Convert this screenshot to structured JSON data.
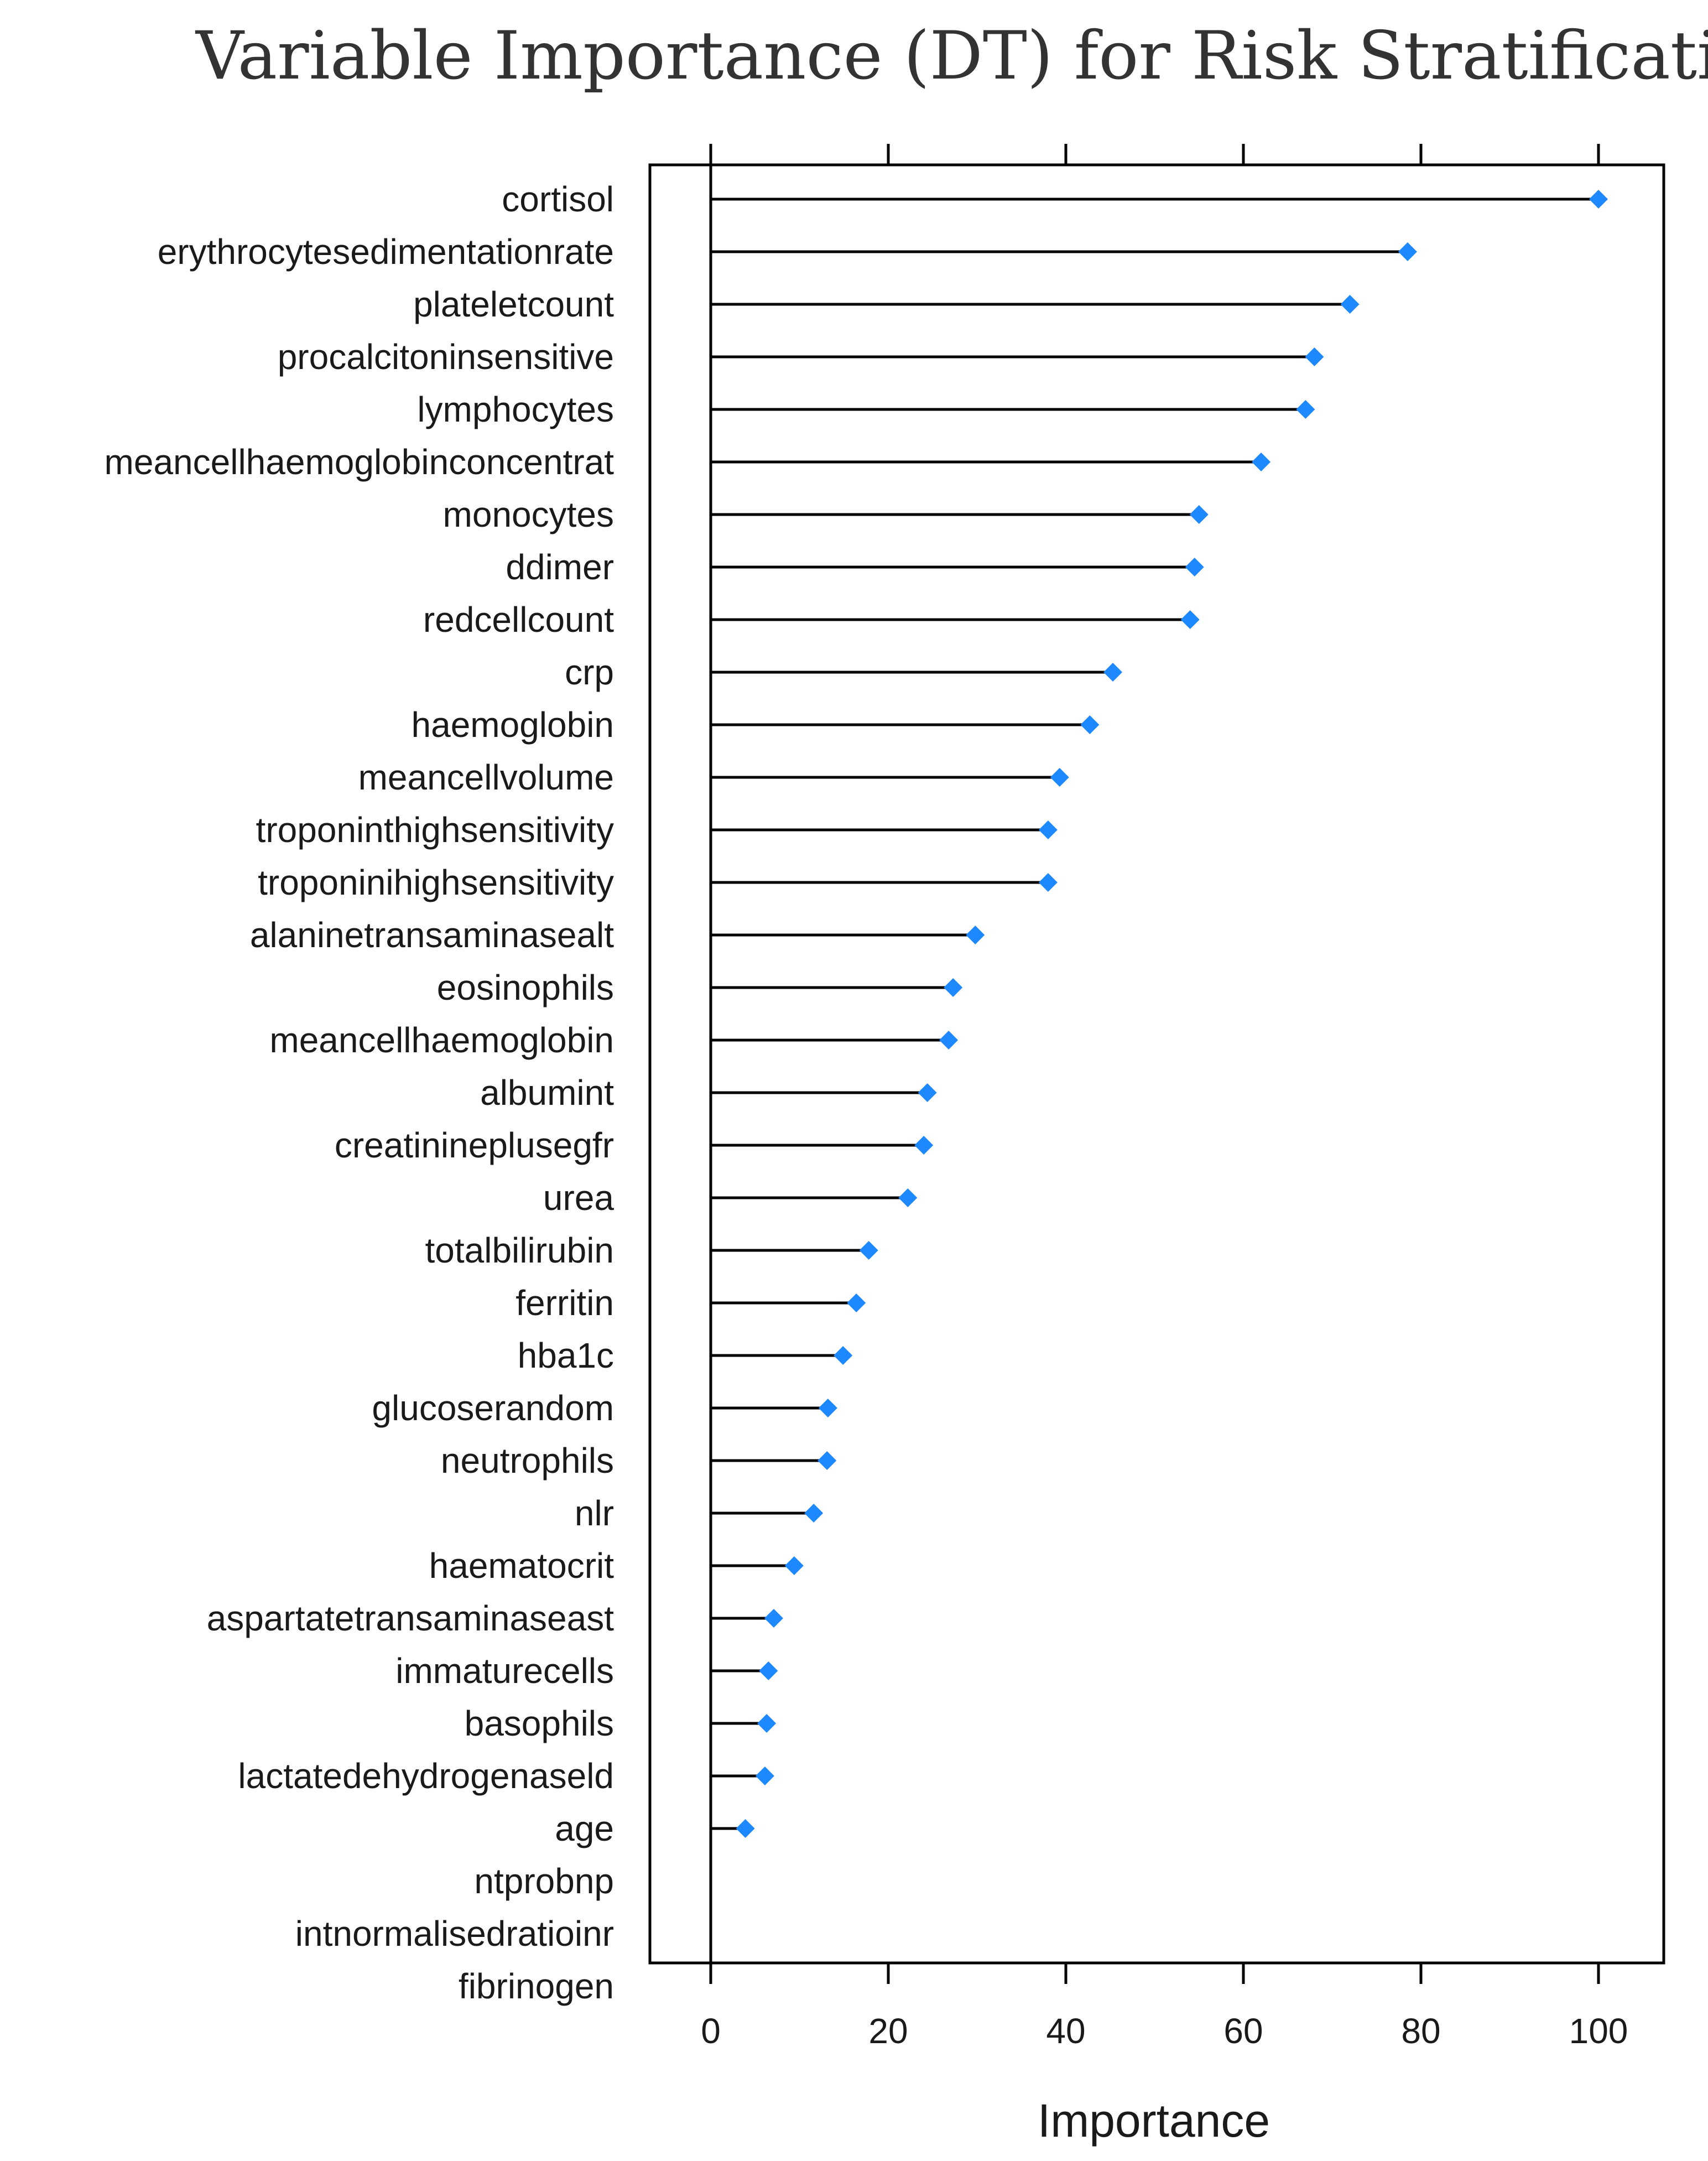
{
  "chart_data": {
    "type": "dot",
    "title": "Variable Importance (DT) for Risk Stratification",
    "xlabel": "Importance",
    "ylabel": "",
    "xlim": [
      -7,
      107
    ],
    "xticks": [
      "0",
      "20",
      "40",
      "60",
      "80",
      "100"
    ],
    "grid": false,
    "legend": "none",
    "marker_color": "#1e88ff",
    "categories": [
      "cortisol",
      "erythrocytesedimentationrate",
      "plateletcount",
      "procalcitoninsensitive",
      "lymphocytes",
      "meancellhaemoglobinconcentrat",
      "monocytes",
      "ddimer",
      "redcellcount",
      "crp",
      "haemoglobin",
      "meancellvolume",
      "troponinthighsensitivity",
      "troponinihighsensitivity",
      "alaninetransaminasealt",
      "eosinophils",
      "meancellhaemoglobin",
      "albumint",
      "creatinineplusegfr",
      "urea",
      "totalbilirubin",
      "ferritin",
      "hba1c",
      "glucoserandom",
      "neutrophils",
      "nlr",
      "haematocrit",
      "aspartatetransaminaseast",
      "immaturecells",
      "basophils",
      "lactatedehydrogenaseld",
      "age",
      "ntprobnp",
      "intnormalisedratioinr",
      "fibrinogen"
    ],
    "values": [
      100,
      78.5,
      72,
      68,
      67,
      62,
      55,
      54.5,
      54,
      45.3,
      42.7,
      39.3,
      38,
      38,
      29.8,
      27.3,
      26.8,
      24.4,
      24,
      22.2,
      17.8,
      16.4,
      14.9,
      13.2,
      13.1,
      11.6,
      9.4,
      7.1,
      6.5,
      6.3,
      6.1,
      3.9,
      null,
      null,
      null
    ]
  }
}
